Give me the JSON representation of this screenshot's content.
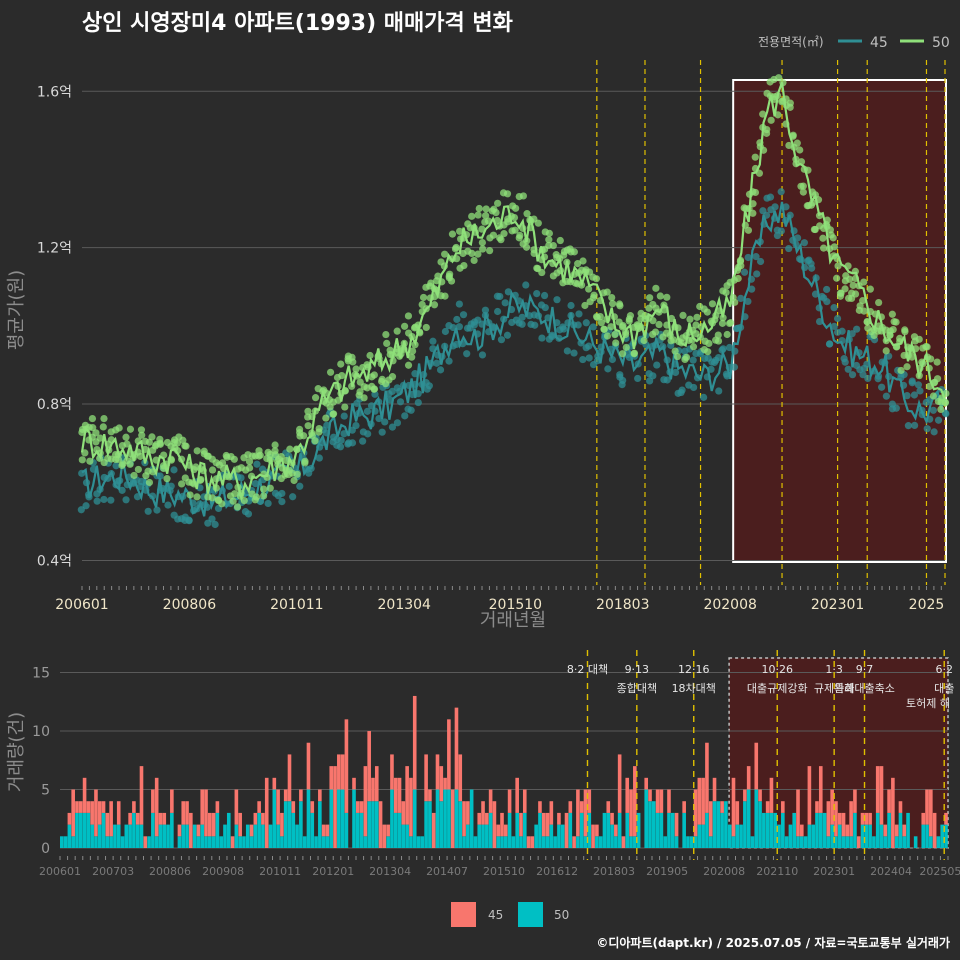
{
  "title": "상인 시영장미4 아파트(1993) 매매가격 변화",
  "credit": "©디아파트(dapt.kr) / 2025.07.05 / 자료=국토교통부 실거래가",
  "colors": {
    "background": "#2b2b2b",
    "line45": "#2f8f94",
    "line50": "#8fe07a",
    "bar45": "#f8766d",
    "bar50": "#00bfc4",
    "highlight": "#5a1a1a",
    "eventLine": "#e0c000",
    "grid": "#5a5a5a"
  },
  "chart_data": [
    {
      "type": "line",
      "title": "상인 시영장미4 아파트(1993) 매매가격 변화",
      "xlabel": "거래년월",
      "ylabel": "평균가(원)",
      "x_ticks": [
        "200601",
        "200806",
        "201011",
        "201304",
        "201510",
        "201803",
        "202008",
        "202301",
        "2025"
      ],
      "y_ticks": [
        {
          "v": 0.4,
          "label": "0.4억"
        },
        {
          "v": 0.8,
          "label": "0.8억"
        },
        {
          "v": 1.2,
          "label": "1.2억"
        },
        {
          "v": 1.6,
          "label": "1.6억"
        }
      ],
      "ylim": [
        0.35,
        1.68
      ],
      "legend_title": "전용면적(㎡)",
      "legend_position": "top-right",
      "series": [
        {
          "name": "45",
          "points": [
            [
              "2006-01",
              0.59
            ],
            [
              "2006-06",
              0.61
            ],
            [
              "2007-01",
              0.62
            ],
            [
              "2007-08",
              0.58
            ],
            [
              "2008-03",
              0.57
            ],
            [
              "2008-06",
              0.56
            ],
            [
              "2009-01",
              0.55
            ],
            [
              "2009-08",
              0.57
            ],
            [
              "2010-03",
              0.6
            ],
            [
              "2010-11",
              0.62
            ],
            [
              "2011-06",
              0.7
            ],
            [
              "2012-01",
              0.76
            ],
            [
              "2012-06",
              0.77
            ],
            [
              "2013-01",
              0.8
            ],
            [
              "2013-06",
              0.84
            ],
            [
              "2013-11",
              0.89
            ],
            [
              "2014-06",
              1.0
            ],
            [
              "2014-11",
              0.97
            ],
            [
              "2015-06",
              1.02
            ],
            [
              "2015-10",
              1.05
            ],
            [
              "2016-06",
              1.03
            ],
            [
              "2017-01",
              0.99
            ],
            [
              "2017-06",
              0.96
            ],
            [
              "2018-01",
              0.92
            ],
            [
              "2018-06",
              0.9
            ],
            [
              "2019-01",
              0.93
            ],
            [
              "2019-06",
              0.89
            ],
            [
              "2020-01",
              0.87
            ],
            [
              "2020-08",
              0.9
            ],
            [
              "2021-01",
              1.12
            ],
            [
              "2021-06",
              1.27
            ],
            [
              "2021-10",
              1.3
            ],
            [
              "2022-03",
              1.18
            ],
            [
              "2022-09",
              1.05
            ],
            [
              "2023-01",
              0.97
            ],
            [
              "2023-06",
              0.93
            ],
            [
              "2024-01",
              0.9
            ],
            [
              "2024-06",
              0.82
            ],
            [
              "2024-12",
              0.78
            ],
            [
              "2025-05",
              0.8
            ]
          ]
        },
        {
          "name": "50",
          "points": [
            [
              "2006-01",
              0.71
            ],
            [
              "2006-06",
              0.7
            ],
            [
              "2007-01",
              0.69
            ],
            [
              "2007-08",
              0.66
            ],
            [
              "2008-03",
              0.67
            ],
            [
              "2008-06",
              0.63
            ],
            [
              "2009-01",
              0.61
            ],
            [
              "2009-08",
              0.6
            ],
            [
              "2010-03",
              0.63
            ],
            [
              "2010-11",
              0.67
            ],
            [
              "2011-06",
              0.8
            ],
            [
              "2012-01",
              0.86
            ],
            [
              "2012-06",
              0.88
            ],
            [
              "2013-01",
              0.93
            ],
            [
              "2013-06",
              0.97
            ],
            [
              "2013-11",
              1.05
            ],
            [
              "2014-06",
              1.2
            ],
            [
              "2014-11",
              1.23
            ],
            [
              "2015-06",
              1.27
            ],
            [
              "2015-10",
              1.3
            ],
            [
              "2016-06",
              1.18
            ],
            [
              "2017-01",
              1.14
            ],
            [
              "2017-06",
              1.1
            ],
            [
              "2018-01",
              1.0
            ],
            [
              "2018-06",
              0.98
            ],
            [
              "2019-01",
              1.05
            ],
            [
              "2019-06",
              0.97
            ],
            [
              "2020-01",
              0.99
            ],
            [
              "2020-08",
              1.05
            ],
            [
              "2021-01",
              1.3
            ],
            [
              "2021-06",
              1.55
            ],
            [
              "2021-10",
              1.6
            ],
            [
              "2022-03",
              1.4
            ],
            [
              "2022-09",
              1.25
            ],
            [
              "2023-01",
              1.15
            ],
            [
              "2023-06",
              1.1
            ],
            [
              "2024-01",
              1.0
            ],
            [
              "2024-06",
              0.95
            ],
            [
              "2024-12",
              0.9
            ],
            [
              "2025-05",
              0.85
            ]
          ]
        }
      ]
    },
    {
      "type": "bar",
      "xlabel": "",
      "ylabel": "거래량(건)",
      "x_ticks": [
        "200601",
        "200703",
        "200806",
        "200908",
        "201011",
        "201201",
        "201304",
        "201407",
        "201510",
        "201612",
        "201803",
        "201905",
        "202008",
        "202110",
        "202301",
        "202404",
        "202505"
      ],
      "y_ticks": [
        0,
        5,
        10,
        15
      ],
      "ylim": [
        0,
        16.5
      ],
      "stacked": true,
      "series": [
        {
          "name": "45"
        },
        {
          "name": "50"
        }
      ],
      "events": [
        {
          "date": "2017-08",
          "line1": "8·2 대책",
          "line2": ""
        },
        {
          "date": "2018-09",
          "line1": "9·13",
          "line2": "종합대책"
        },
        {
          "date": "2019-12",
          "line1": "12·16",
          "line2": "18차대책"
        },
        {
          "date": "2021-10",
          "line1": "10·26",
          "line2": "대출규제강화"
        },
        {
          "date": "2023-01",
          "line1": "1·3",
          "line2": "규제완화"
        },
        {
          "date": "2023-09",
          "line1": "9·7",
          "line2": "특례대출축소"
        },
        {
          "date": "2025-06",
          "line1": "6·2",
          "line2": "대출"
        }
      ],
      "extra_labels": [
        "토허제 해"
      ]
    }
  ],
  "legend_bottom": [
    "45",
    "50"
  ]
}
